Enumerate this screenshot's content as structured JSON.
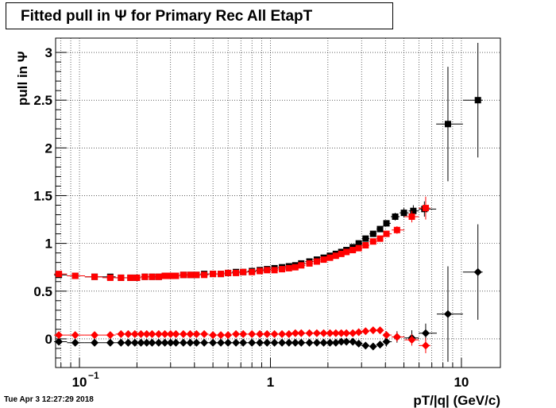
{
  "page": {
    "title": "Fitted pull in  Ψ  for Primary Rec All EtapT",
    "timestamp": "Tue Apr  3 12:27:29 2018"
  },
  "colors": {
    "black_series": "#000000",
    "red_series": "#ff0000",
    "grid": "#000000"
  },
  "chart_data": {
    "type": "scatter",
    "title": "Fitted pull in  Ψ  for Primary Rec All EtapT",
    "xlabel": "pT/|q| (GeV/c)",
    "ylabel": "pull in  Ψ",
    "x_scale": "log",
    "xlim": [
      0.075,
      16
    ],
    "ylim": [
      -0.3,
      3.15
    ],
    "grid": true,
    "x_ticks": [
      {
        "value": 0.1,
        "label": "10",
        "sup": "−1"
      },
      {
        "value": 1,
        "label": "1",
        "sup": ""
      },
      {
        "value": 10,
        "label": "10",
        "sup": ""
      }
    ],
    "y_ticks": [
      {
        "value": 0,
        "label": "0"
      },
      {
        "value": 0.5,
        "label": "0.5"
      },
      {
        "value": 1,
        "label": "1"
      },
      {
        "value": 1.5,
        "label": "1.5"
      },
      {
        "value": 2,
        "label": "2"
      },
      {
        "value": 2.5,
        "label": "2.5"
      },
      {
        "value": 3,
        "label": "3"
      }
    ],
    "series": [
      {
        "marker": "square",
        "color": "#000000",
        "x": [
          0.078,
          0.095,
          0.12,
          0.145,
          0.165,
          0.185,
          0.2,
          0.22,
          0.24,
          0.26,
          0.28,
          0.3,
          0.32,
          0.35,
          0.38,
          0.41,
          0.45,
          0.5,
          0.55,
          0.6,
          0.66,
          0.72,
          0.8,
          0.88,
          0.96,
          1.05,
          1.15,
          1.25,
          1.35,
          1.45,
          1.6,
          1.75,
          1.9,
          2.05,
          2.2,
          2.35,
          2.5,
          2.7,
          2.9,
          3.15,
          3.45,
          3.75,
          4.05,
          4.5,
          5.0,
          5.6,
          6.4,
          8.5,
          12.2
        ],
        "y": [
          0.67,
          0.66,
          0.65,
          0.65,
          0.64,
          0.64,
          0.64,
          0.65,
          0.65,
          0.65,
          0.66,
          0.66,
          0.66,
          0.67,
          0.67,
          0.67,
          0.68,
          0.68,
          0.68,
          0.69,
          0.7,
          0.7,
          0.71,
          0.72,
          0.73,
          0.74,
          0.75,
          0.76,
          0.77,
          0.79,
          0.81,
          0.83,
          0.85,
          0.87,
          0.89,
          0.91,
          0.93,
          0.96,
          1.0,
          1.05,
          1.1,
          1.15,
          1.21,
          1.28,
          1.32,
          1.34,
          1.36,
          2.25,
          2.5
        ],
        "yerr": [
          0.02,
          0.02,
          0.01,
          0.01,
          0.01,
          0.01,
          0.01,
          0.01,
          0.01,
          0.01,
          0.01,
          0.01,
          0.01,
          0.01,
          0.01,
          0.01,
          0.01,
          0.01,
          0.01,
          0.01,
          0.01,
          0.01,
          0.01,
          0.01,
          0.01,
          0.01,
          0.01,
          0.01,
          0.01,
          0.01,
          0.01,
          0.01,
          0.01,
          0.01,
          0.01,
          0.01,
          0.01,
          0.01,
          0.01,
          0.02,
          0.02,
          0.02,
          0.03,
          0.04,
          0.05,
          0.06,
          0.08,
          0.6,
          0.6
        ]
      },
      {
        "marker": "square",
        "color": "#ff0000",
        "x": [
          0.078,
          0.095,
          0.12,
          0.145,
          0.165,
          0.185,
          0.2,
          0.22,
          0.24,
          0.26,
          0.28,
          0.3,
          0.32,
          0.35,
          0.38,
          0.41,
          0.45,
          0.5,
          0.55,
          0.6,
          0.66,
          0.72,
          0.8,
          0.88,
          0.96,
          1.05,
          1.15,
          1.25,
          1.35,
          1.45,
          1.6,
          1.75,
          1.9,
          2.05,
          2.2,
          2.35,
          2.5,
          2.7,
          2.9,
          3.15,
          3.45,
          3.75,
          4.05,
          4.6,
          5.5,
          6.5
        ],
        "y": [
          0.68,
          0.66,
          0.65,
          0.64,
          0.64,
          0.64,
          0.64,
          0.65,
          0.65,
          0.65,
          0.66,
          0.66,
          0.66,
          0.67,
          0.67,
          0.67,
          0.67,
          0.68,
          0.68,
          0.69,
          0.69,
          0.7,
          0.7,
          0.71,
          0.72,
          0.72,
          0.73,
          0.74,
          0.75,
          0.77,
          0.79,
          0.81,
          0.83,
          0.85,
          0.87,
          0.89,
          0.91,
          0.93,
          0.95,
          0.98,
          1.02,
          1.05,
          1.1,
          1.14,
          1.28,
          1.37
        ],
        "yerr": [
          0.02,
          0.02,
          0.01,
          0.01,
          0.01,
          0.01,
          0.01,
          0.01,
          0.01,
          0.01,
          0.01,
          0.01,
          0.01,
          0.01,
          0.01,
          0.01,
          0.01,
          0.01,
          0.01,
          0.01,
          0.01,
          0.01,
          0.01,
          0.01,
          0.01,
          0.01,
          0.01,
          0.01,
          0.01,
          0.01,
          0.01,
          0.01,
          0.01,
          0.01,
          0.01,
          0.01,
          0.01,
          0.01,
          0.01,
          0.02,
          0.02,
          0.02,
          0.03,
          0.04,
          0.06,
          0.12
        ]
      },
      {
        "marker": "diamond",
        "color": "#000000",
        "x": [
          0.078,
          0.095,
          0.12,
          0.145,
          0.165,
          0.18,
          0.195,
          0.21,
          0.225,
          0.24,
          0.26,
          0.28,
          0.3,
          0.32,
          0.35,
          0.38,
          0.41,
          0.45,
          0.5,
          0.55,
          0.6,
          0.66,
          0.72,
          0.8,
          0.88,
          0.96,
          1.05,
          1.15,
          1.25,
          1.35,
          1.45,
          1.6,
          1.75,
          1.9,
          2.05,
          2.2,
          2.35,
          2.5,
          2.7,
          2.9,
          3.15,
          3.45,
          3.75,
          4.05,
          4.6,
          5.5,
          6.5,
          8.5,
          12.2
        ],
        "y": [
          -0.03,
          -0.04,
          -0.04,
          -0.04,
          -0.04,
          -0.04,
          -0.04,
          -0.04,
          -0.04,
          -0.04,
          -0.04,
          -0.04,
          -0.04,
          -0.04,
          -0.04,
          -0.04,
          -0.04,
          -0.04,
          -0.04,
          -0.04,
          -0.04,
          -0.04,
          -0.04,
          -0.04,
          -0.04,
          -0.04,
          -0.04,
          -0.04,
          -0.04,
          -0.04,
          -0.04,
          -0.04,
          -0.04,
          -0.04,
          -0.04,
          -0.04,
          -0.03,
          -0.03,
          -0.03,
          -0.05,
          -0.07,
          -0.08,
          -0.06,
          -0.03,
          0.02,
          0.01,
          0.06,
          0.26,
          0.7
        ],
        "yerr": [
          0.02,
          0.02,
          0.01,
          0.01,
          0.01,
          0.01,
          0.01,
          0.01,
          0.01,
          0.01,
          0.01,
          0.01,
          0.01,
          0.01,
          0.01,
          0.01,
          0.01,
          0.01,
          0.01,
          0.01,
          0.01,
          0.01,
          0.01,
          0.01,
          0.01,
          0.01,
          0.01,
          0.01,
          0.01,
          0.01,
          0.01,
          0.01,
          0.01,
          0.01,
          0.01,
          0.01,
          0.01,
          0.01,
          0.01,
          0.02,
          0.02,
          0.02,
          0.03,
          0.05,
          0.06,
          0.08,
          0.1,
          0.5,
          0.5
        ]
      },
      {
        "marker": "diamond",
        "color": "#ff0000",
        "x": [
          0.078,
          0.095,
          0.12,
          0.145,
          0.165,
          0.18,
          0.195,
          0.21,
          0.225,
          0.24,
          0.26,
          0.28,
          0.3,
          0.32,
          0.35,
          0.38,
          0.41,
          0.45,
          0.5,
          0.55,
          0.6,
          0.66,
          0.72,
          0.8,
          0.88,
          0.96,
          1.05,
          1.15,
          1.25,
          1.35,
          1.45,
          1.6,
          1.75,
          1.9,
          2.05,
          2.2,
          2.35,
          2.5,
          2.7,
          2.9,
          3.15,
          3.45,
          3.75,
          4.05,
          4.6,
          5.5,
          6.5
        ],
        "y": [
          0.04,
          0.04,
          0.04,
          0.04,
          0.05,
          0.05,
          0.05,
          0.05,
          0.05,
          0.05,
          0.05,
          0.05,
          0.05,
          0.05,
          0.05,
          0.05,
          0.05,
          0.05,
          0.04,
          0.04,
          0.04,
          0.05,
          0.05,
          0.05,
          0.05,
          0.05,
          0.05,
          0.05,
          0.05,
          0.06,
          0.06,
          0.06,
          0.06,
          0.06,
          0.06,
          0.06,
          0.06,
          0.06,
          0.06,
          0.07,
          0.08,
          0.09,
          0.09,
          0.04,
          0.02,
          -0.01,
          -0.07
        ],
        "yerr": [
          0.02,
          0.02,
          0.01,
          0.01,
          0.01,
          0.01,
          0.01,
          0.01,
          0.01,
          0.01,
          0.01,
          0.01,
          0.01,
          0.01,
          0.01,
          0.01,
          0.01,
          0.01,
          0.01,
          0.01,
          0.01,
          0.01,
          0.01,
          0.01,
          0.01,
          0.01,
          0.01,
          0.01,
          0.01,
          0.01,
          0.01,
          0.01,
          0.01,
          0.01,
          0.01,
          0.01,
          0.01,
          0.01,
          0.01,
          0.02,
          0.02,
          0.02,
          0.03,
          0.04,
          0.05,
          0.06,
          0.08
        ]
      }
    ]
  }
}
